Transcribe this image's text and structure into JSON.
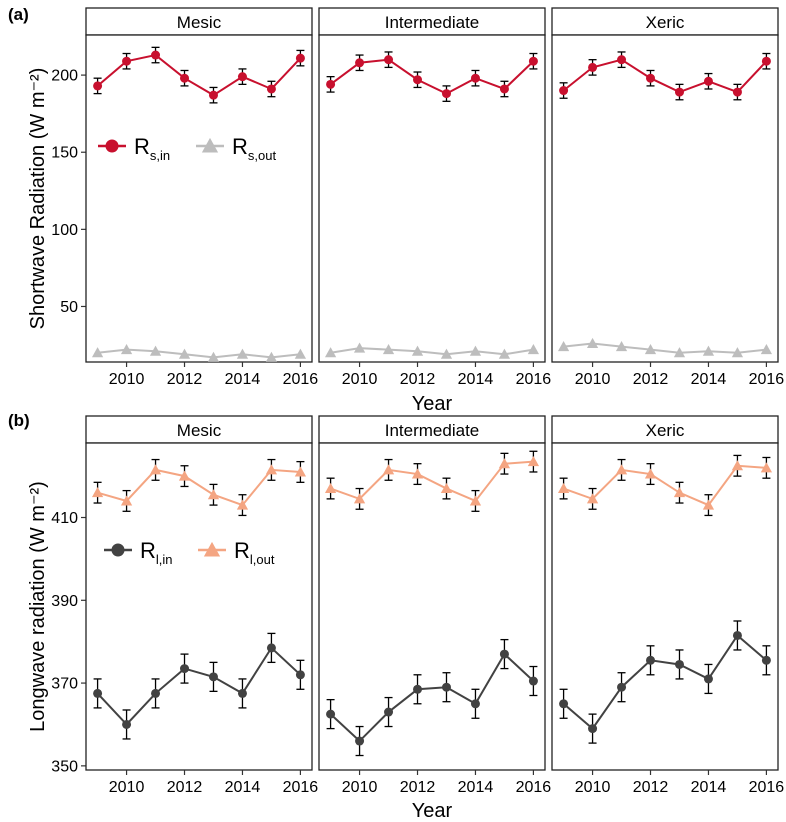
{
  "colors": {
    "rs_in": "#c8102e",
    "rs_out": "#bdbdbd",
    "rl_in": "#424242",
    "rl_out": "#f4a582",
    "strip_bg": "#ffffff",
    "frame": "#222222"
  },
  "chart_data": [
    {
      "type": "line",
      "panel_label": "(a)",
      "ylabel": "Shortwave Radiation (W m⁻²)",
      "xlabel": "Year",
      "ylim": [
        14,
        226
      ],
      "yticks": [
        50,
        100,
        150,
        200
      ],
      "xlim": [
        2008.6,
        2016.4
      ],
      "xticks": [
        2010,
        2012,
        2014,
        2016
      ],
      "x": [
        2009,
        2010,
        2011,
        2012,
        2013,
        2014,
        2015,
        2016
      ],
      "legend": {
        "position": "upper-left of first facet",
        "entries": [
          {
            "main": "R",
            "sub": "s,in",
            "marker": "circle"
          },
          {
            "main": "R",
            "sub": "s,out",
            "marker": "triangle"
          }
        ]
      },
      "facets": [
        {
          "name": "Mesic",
          "series": [
            {
              "key": "rs_in",
              "marker": "circle",
              "values": [
                193,
                209,
                213,
                198,
                187,
                199,
                191,
                211
              ],
              "errors": [
                5,
                5,
                5,
                5,
                5,
                5,
                5,
                5
              ]
            },
            {
              "key": "rs_out",
              "marker": "triangle",
              "values": [
                20,
                22,
                21,
                19,
                17,
                19,
                17,
                19
              ],
              "errors": [
                0,
                0,
                0,
                0,
                0,
                0,
                0,
                0
              ]
            }
          ]
        },
        {
          "name": "Intermediate",
          "series": [
            {
              "key": "rs_in",
              "marker": "circle",
              "values": [
                194,
                208,
                210,
                197,
                188,
                198,
                191,
                209
              ],
              "errors": [
                5,
                5,
                5,
                5,
                5,
                5,
                5,
                5
              ]
            },
            {
              "key": "rs_out",
              "marker": "triangle",
              "values": [
                20,
                23,
                22,
                21,
                19,
                21,
                19,
                22
              ],
              "errors": [
                0,
                0,
                0,
                0,
                0,
                0,
                0,
                0
              ]
            }
          ]
        },
        {
          "name": "Xeric",
          "series": [
            {
              "key": "rs_in",
              "marker": "circle",
              "values": [
                190,
                205,
                210,
                198,
                189,
                196,
                189,
                209
              ],
              "errors": [
                5,
                5,
                5,
                5,
                5,
                5,
                5,
                5
              ]
            },
            {
              "key": "rs_out",
              "marker": "triangle",
              "values": [
                24,
                26,
                24,
                22,
                20,
                21,
                20,
                22
              ],
              "errors": [
                0,
                0,
                0,
                0,
                0,
                0,
                0,
                0
              ]
            }
          ]
        }
      ]
    },
    {
      "type": "line",
      "panel_label": "(b)",
      "ylabel": "Longwave radiation (W m⁻²)",
      "xlabel": "Year",
      "ylim": [
        349,
        428
      ],
      "yticks": [
        350,
        370,
        390,
        410
      ],
      "xlim": [
        2008.6,
        2016.4
      ],
      "xticks": [
        2010,
        2012,
        2014,
        2016
      ],
      "x": [
        2009,
        2010,
        2011,
        2012,
        2013,
        2014,
        2015,
        2016
      ],
      "legend": {
        "position": "middle-left of first facet",
        "entries": [
          {
            "main": "R",
            "sub": "l,in",
            "marker": "circle"
          },
          {
            "main": "R",
            "sub": "l,out",
            "marker": "triangle"
          }
        ]
      },
      "facets": [
        {
          "name": "Mesic",
          "series": [
            {
              "key": "rl_in",
              "marker": "circle",
              "values": [
                367.5,
                360,
                367.5,
                373.5,
                371.5,
                367.5,
                378.5,
                372
              ],
              "errors": [
                3.5,
                3.5,
                3.5,
                3.5,
                3.5,
                3.5,
                3.5,
                3.5
              ]
            },
            {
              "key": "rl_out",
              "marker": "triangle",
              "values": [
                416,
                414,
                421.5,
                420,
                415.5,
                413,
                421.5,
                421
              ],
              "errors": [
                2.5,
                2.5,
                2.5,
                2.5,
                2.5,
                2.5,
                2.5,
                2.5
              ]
            }
          ]
        },
        {
          "name": "Intermediate",
          "series": [
            {
              "key": "rl_in",
              "marker": "circle",
              "values": [
                362.5,
                356,
                363,
                368.5,
                369,
                365,
                377,
                370.5
              ],
              "errors": [
                3.5,
                3.5,
                3.5,
                3.5,
                3.5,
                3.5,
                3.5,
                3.5
              ]
            },
            {
              "key": "rl_out",
              "marker": "triangle",
              "values": [
                417,
                414.5,
                421.5,
                420.5,
                417,
                414,
                423,
                423.5
              ],
              "errors": [
                2.5,
                2.5,
                2.5,
                2.5,
                2.5,
                2.5,
                2.5,
                2.5
              ]
            }
          ]
        },
        {
          "name": "Xeric",
          "series": [
            {
              "key": "rl_in",
              "marker": "circle",
              "values": [
                365,
                359,
                369,
                375.5,
                374.5,
                371,
                381.5,
                375.5
              ],
              "errors": [
                3.5,
                3.5,
                3.5,
                3.5,
                3.5,
                3.5,
                3.5,
                3.5
              ]
            },
            {
              "key": "rl_out",
              "marker": "triangle",
              "values": [
                417,
                414.5,
                421.5,
                420.5,
                416,
                413,
                422.5,
                422
              ],
              "errors": [
                2.5,
                2.5,
                2.5,
                2.5,
                2.5,
                2.5,
                2.5,
                2.5
              ]
            }
          ]
        }
      ]
    }
  ]
}
